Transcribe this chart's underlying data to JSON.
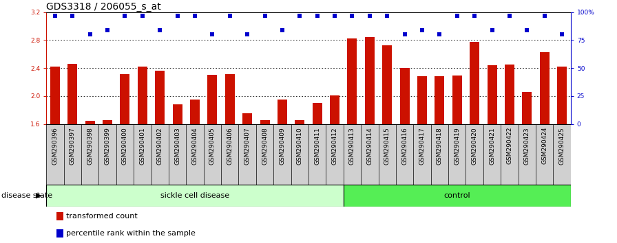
{
  "title": "GDS3318 / 206055_s_at",
  "categories": [
    "GSM290396",
    "GSM290397",
    "GSM290398",
    "GSM290399",
    "GSM290400",
    "GSM290401",
    "GSM290402",
    "GSM290403",
    "GSM290404",
    "GSM290405",
    "GSM290406",
    "GSM290407",
    "GSM290408",
    "GSM290409",
    "GSM290410",
    "GSM290411",
    "GSM290412",
    "GSM290413",
    "GSM290414",
    "GSM290415",
    "GSM290416",
    "GSM290417",
    "GSM290418",
    "GSM290419",
    "GSM290420",
    "GSM290421",
    "GSM290422",
    "GSM290423",
    "GSM290424",
    "GSM290425"
  ],
  "bar_values": [
    2.42,
    2.46,
    1.64,
    1.65,
    2.31,
    2.42,
    2.36,
    1.88,
    1.95,
    2.3,
    2.31,
    1.75,
    1.65,
    1.95,
    1.65,
    1.9,
    2.01,
    2.82,
    2.84,
    2.73,
    2.4,
    2.28,
    2.28,
    2.29,
    2.77,
    2.44,
    2.45,
    2.06,
    2.63,
    2.42
  ],
  "percentile_values": [
    97,
    97,
    80,
    84,
    97,
    97,
    84,
    97,
    97,
    80,
    97,
    80,
    97,
    84,
    97,
    97,
    97,
    97,
    97,
    97,
    80,
    84,
    80,
    97,
    97,
    84,
    97,
    84,
    97,
    80
  ],
  "bar_color": "#cc1100",
  "dot_color": "#0000cc",
  "ylim_left": [
    1.6,
    3.2
  ],
  "ylim_right": [
    0,
    100
  ],
  "yticks_left": [
    1.6,
    2.0,
    2.4,
    2.8,
    3.2
  ],
  "yticks_right": [
    0,
    25,
    50,
    75,
    100
  ],
  "grid_values": [
    2.0,
    2.4,
    2.8
  ],
  "sickle_count": 17,
  "sickle_label": "sickle cell disease",
  "control_label": "control",
  "disease_state_label": "disease state",
  "legend_bar_label": "transformed count",
  "legend_dot_label": "percentile rank within the sample",
  "background_color": "#ffffff",
  "tick_area_color": "#d0d0d0",
  "sickle_color": "#ccffcc",
  "control_color": "#55ee55",
  "title_fontsize": 10,
  "tick_fontsize": 6.5,
  "label_fontsize": 8
}
